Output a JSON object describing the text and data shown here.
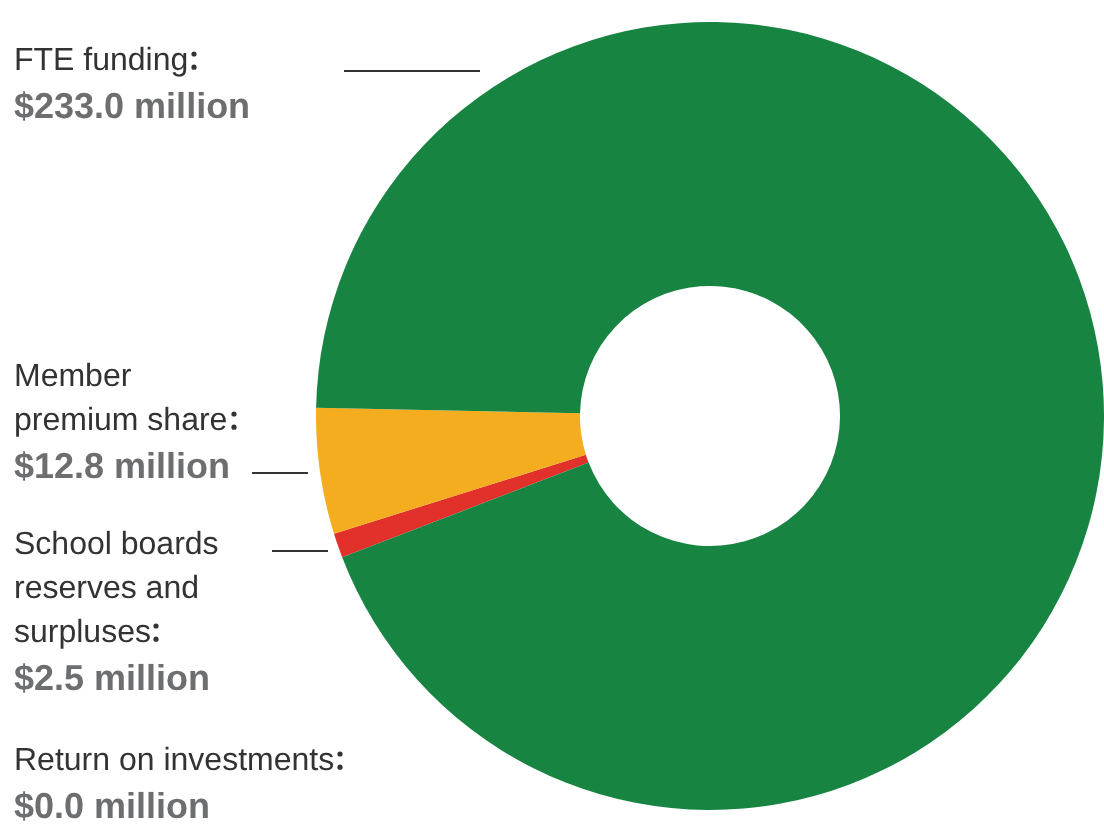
{
  "chart_data": {
    "type": "donut",
    "categories": [
      "School boards reserves and surpluses",
      "Member premium share",
      "FTE funding",
      "Return on investments"
    ],
    "values": [
      2.5,
      12.8,
      233.0,
      0.0
    ],
    "colors": [
      "#e2312a",
      "#f4ad1f",
      "#178442",
      "#8a8a8a"
    ],
    "value_labels": [
      "$2.5 million",
      "$12.8 million",
      "$233.0 million",
      "$0.0 million"
    ]
  }
}
